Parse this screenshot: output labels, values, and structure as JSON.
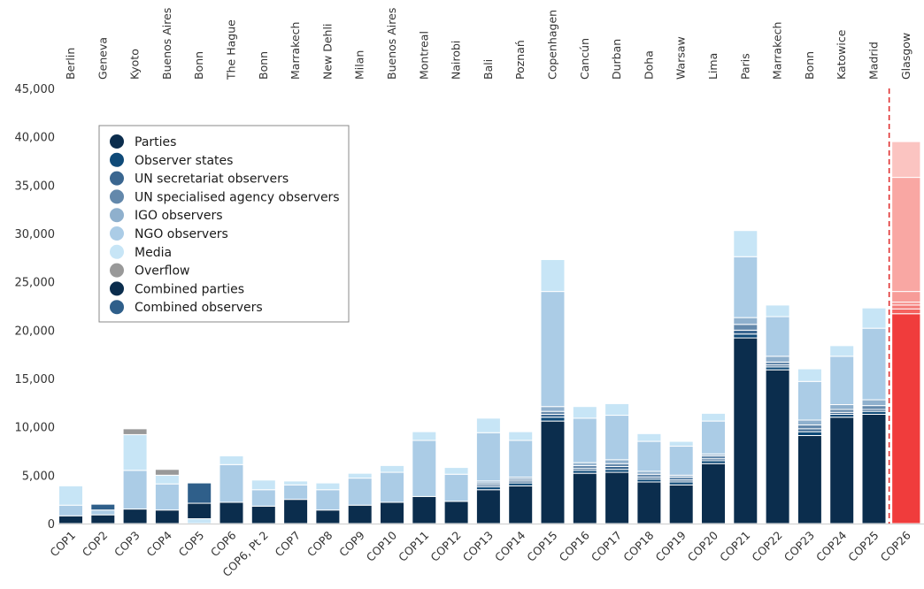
{
  "chart_data": {
    "type": "bar",
    "stacked": true,
    "ylim": [
      0,
      45000
    ],
    "yticks": [
      0,
      5000,
      10000,
      15000,
      20000,
      25000,
      30000,
      35000,
      40000,
      45000
    ],
    "ytick_labels": [
      "0",
      "5,000",
      "10,000",
      "15,000",
      "20,000",
      "25,000",
      "30,000",
      "35,000",
      "40,000",
      "45,000"
    ],
    "grid": false,
    "legend_position": "top-left",
    "categories": [
      "COP1",
      "COP2",
      "COP3",
      "COP4",
      "COP5",
      "COP6",
      "COP6, Pt 2",
      "COP7",
      "COP8",
      "COP9",
      "COP10",
      "COP11",
      "COP12",
      "COP13",
      "COP14",
      "COP15",
      "COP16",
      "COP17",
      "COP18",
      "COP19",
      "COP20",
      "COP21",
      "COP22",
      "COP23",
      "COP24",
      "COP25",
      "COP26"
    ],
    "locations": [
      "Berlin",
      "Geneva",
      "Kyoto",
      "Buenos Aires",
      "Bonn",
      "The Hague",
      "Bonn",
      "Marrakech",
      "New Dehli",
      "Milan",
      "Buenos Aires",
      "Montreal",
      "Nairobi",
      "Bali",
      "Poznań",
      "Copenhagen",
      "Cancún",
      "Durban",
      "Doha",
      "Warsaw",
      "Lima",
      "Paris",
      "Marrakech",
      "Bonn",
      "Katowice",
      "Madrid",
      "Glasgow"
    ],
    "series": [
      {
        "name": "Parties",
        "color": "#0b2d4d",
        "values": [
          800,
          900,
          1500,
          1400,
          0,
          2200,
          1800,
          2500,
          1400,
          1900,
          2200,
          2800,
          2300,
          3500,
          3900,
          10600,
          5200,
          5300,
          4300,
          4000,
          6200,
          19200,
          15900,
          9100,
          11000,
          11300,
          21700
        ]
      },
      {
        "name": "Observer states",
        "color": "#0f4a78",
        "values": [
          0,
          0,
          0,
          0,
          0,
          0,
          0,
          0,
          0,
          0,
          0,
          0,
          0,
          300,
          300,
          400,
          300,
          300,
          300,
          300,
          300,
          400,
          300,
          400,
          300,
          300,
          500
        ]
      },
      {
        "name": "UN secretariat observers",
        "color": "#3a6690",
        "values": [
          0,
          0,
          0,
          0,
          0,
          0,
          0,
          0,
          0,
          0,
          0,
          0,
          0,
          200,
          200,
          300,
          200,
          300,
          200,
          200,
          200,
          400,
          200,
          300,
          200,
          200,
          400
        ]
      },
      {
        "name": "UN specialised agency observers",
        "color": "#6388ab",
        "values": [
          0,
          0,
          0,
          0,
          0,
          0,
          0,
          0,
          0,
          0,
          0,
          0,
          0,
          200,
          200,
          300,
          300,
          300,
          300,
          300,
          300,
          600,
          300,
          400,
          300,
          400,
          300
        ]
      },
      {
        "name": "IGO observers",
        "color": "#8fb0cd",
        "values": [
          0,
          0,
          0,
          0,
          0,
          0,
          0,
          0,
          0,
          0,
          0,
          0,
          0,
          200,
          200,
          500,
          300,
          400,
          300,
          200,
          200,
          700,
          600,
          500,
          500,
          600,
          1100
        ]
      },
      {
        "name": "NGO observers",
        "color": "#abcce6",
        "values": [
          1100,
          500,
          4000,
          2700,
          0,
          3900,
          1700,
          1500,
          2100,
          2800,
          3100,
          5800,
          2800,
          5000,
          3800,
          11900,
          4600,
          4600,
          3100,
          3000,
          3400,
          6300,
          4100,
          4000,
          5000,
          7400,
          11800
        ]
      },
      {
        "name": "Media",
        "color": "#c7e5f6",
        "values": [
          2000,
          0,
          3700,
          900,
          500,
          900,
          1000,
          400,
          700,
          500,
          700,
          900,
          700,
          1500,
          900,
          3300,
          1200,
          1200,
          800,
          500,
          800,
          2700,
          1200,
          1300,
          1100,
          2100,
          3700
        ]
      },
      {
        "name": "Overflow",
        "color": "#999999",
        "values": [
          0,
          0,
          600,
          600,
          0,
          0,
          0,
          0,
          0,
          0,
          0,
          0,
          0,
          0,
          0,
          0,
          0,
          0,
          0,
          0,
          0,
          0,
          0,
          0,
          0,
          0,
          0
        ]
      },
      {
        "name": "Combined parties",
        "color": "#0b2d4d",
        "values": [
          0,
          0,
          0,
          0,
          1600,
          0,
          0,
          0,
          0,
          0,
          0,
          0,
          0,
          0,
          0,
          0,
          0,
          0,
          0,
          0,
          0,
          0,
          0,
          0,
          0,
          0,
          0
        ]
      },
      {
        "name": "Combined observers",
        "color": "#2f5f8a",
        "values": [
          0,
          600,
          0,
          0,
          2100,
          0,
          0,
          0,
          0,
          0,
          0,
          0,
          0,
          0,
          0,
          0,
          0,
          0,
          0,
          0,
          0,
          0,
          0,
          0,
          0,
          0,
          0
        ]
      }
    ],
    "highlight": {
      "category": "COP26",
      "colors": [
        "#f03c3c",
        "#f5625f",
        "#f47b78",
        "#f68d89",
        "#f79c98",
        "#f9a7a3",
        "#fbc4c1"
      ]
    }
  }
}
